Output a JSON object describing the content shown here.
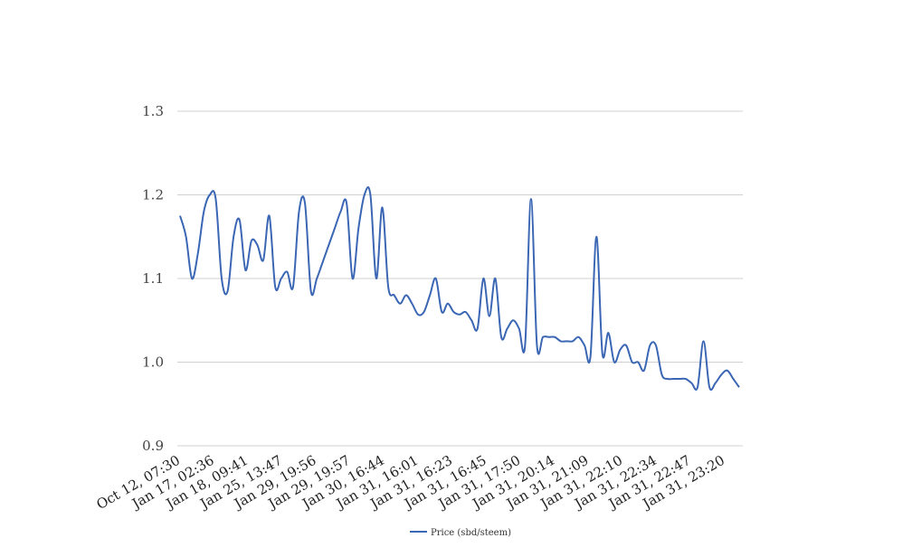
{
  "chart_data": {
    "type": "line",
    "title": "",
    "xlabel": "",
    "ylabel": "",
    "ylim": [
      0.9,
      1.3
    ],
    "yticks": [
      "0.9",
      "1.0",
      "1.1",
      "1.2",
      "1.3"
    ],
    "grid": true,
    "legend_position": "bottom",
    "x_tick_labels": [
      "Oct 12, 07:30",
      "Jan 17, 02:36",
      "Jan 18, 09:41",
      "Jan 25, 13:47",
      "Jan 29, 19:56",
      "Jan 29, 19:57",
      "Jan 30, 16:44",
      "Jan 31, 16:01",
      "Jan 31, 16:23",
      "Jan 31, 16:45",
      "Jan 31, 17:50",
      "Jan 31, 20:14",
      "Jan 31, 21:09",
      "Jan 31, 22:10",
      "Jan 31, 22:34",
      "Jan 31, 22:47",
      "Jan 31, 23:20"
    ],
    "series": [
      {
        "name": "Price (sbd/steem)",
        "color": "#3a66b4",
        "values": [
          1.175,
          1.15,
          1.1,
          1.13,
          1.18,
          1.2,
          1.195,
          1.1,
          1.085,
          1.15,
          1.17,
          1.11,
          1.145,
          1.14,
          1.122,
          1.175,
          1.09,
          1.1,
          1.108,
          1.09,
          1.18,
          1.19,
          1.085,
          1.1,
          1.12,
          1.14,
          1.16,
          1.18,
          1.19,
          1.1,
          1.16,
          1.2,
          1.2,
          1.1,
          1.185,
          1.09,
          1.08,
          1.07,
          1.08,
          1.07,
          1.057,
          1.06,
          1.08,
          1.1,
          1.06,
          1.07,
          1.06,
          1.057,
          1.06,
          1.05,
          1.04,
          1.1,
          1.055,
          1.1,
          1.03,
          1.04,
          1.05,
          1.04,
          1.02,
          1.195,
          1.02,
          1.03,
          1.03,
          1.03,
          1.025,
          1.025,
          1.025,
          1.03,
          1.02,
          1.007,
          1.15,
          1.01,
          1.035,
          1.0,
          1.015,
          1.02,
          1.0,
          1.0,
          0.99,
          1.02,
          1.02,
          0.985,
          0.98,
          0.98,
          0.98,
          0.98,
          0.975,
          0.97,
          1.025,
          0.97,
          0.975,
          0.985,
          0.99,
          0.98,
          0.97
        ]
      }
    ]
  }
}
